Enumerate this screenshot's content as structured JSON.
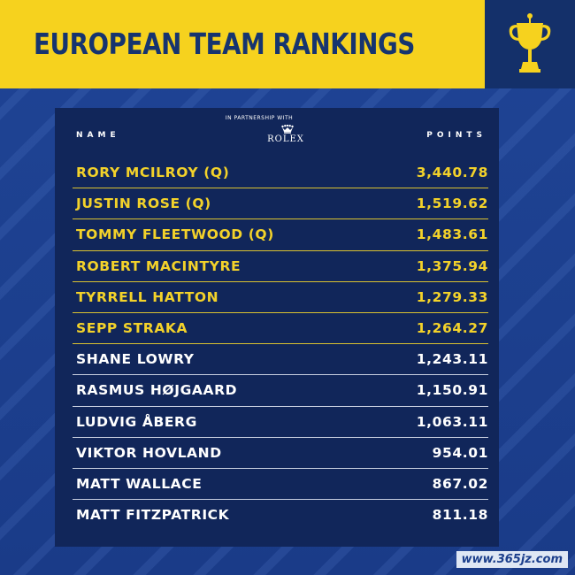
{
  "header": {
    "title": "EUROPEAN TEAM RANKINGS"
  },
  "table": {
    "name_header": "NAME",
    "points_header": "POINTS",
    "partner_text": "IN PARTNERSHIP WITH",
    "partner_name": "ROLEX",
    "rows": [
      {
        "name": "RORY MCILROY (Q)",
        "points": "3,440.78",
        "qualified": true
      },
      {
        "name": "JUSTIN ROSE (Q)",
        "points": "1,519.62",
        "qualified": true
      },
      {
        "name": "TOMMY FLEETWOOD (Q)",
        "points": "1,483.61",
        "qualified": true
      },
      {
        "name": "ROBERT MACINTYRE",
        "points": "1,375.94",
        "qualified": true
      },
      {
        "name": "TYRRELL HATTON",
        "points": "1,279.33",
        "qualified": true
      },
      {
        "name": "SEPP STRAKA",
        "points": "1,264.27",
        "qualified": true
      },
      {
        "name": "SHANE LOWRY",
        "points": "1,243.11",
        "qualified": false
      },
      {
        "name": "RASMUS HØJGAARD",
        "points": "1,150.91",
        "qualified": false
      },
      {
        "name": "LUDVIG ÅBERG",
        "points": "1,063.11",
        "qualified": false
      },
      {
        "name": "VIKTOR HOVLAND",
        "points": "954.01",
        "qualified": false
      },
      {
        "name": "MATT WALLACE",
        "points": "867.02",
        "qualified": false
      },
      {
        "name": "MATT FITZPATRICK",
        "points": "811.18",
        "qualified": false
      }
    ]
  },
  "watermark": "www.365jz.com",
  "icons": {
    "trophy": "trophy-icon",
    "rolex_crown": "crown-icon"
  },
  "colors": {
    "yellow": "#f6d21e",
    "navy": "#16346f",
    "panel": "#11265a",
    "qualified_text": "#f3d22a",
    "background": "#1d3f8f"
  }
}
